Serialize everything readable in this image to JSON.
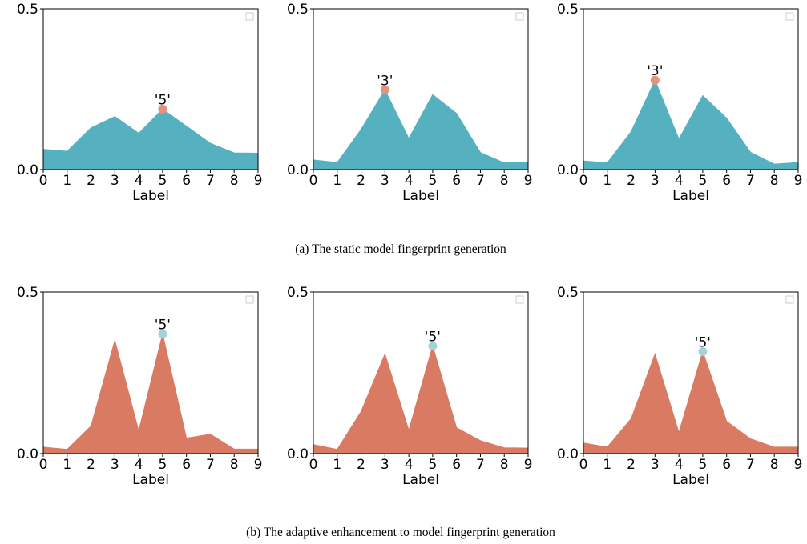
{
  "colors": {
    "static_fill": "#55b1bf",
    "adaptive_fill": "#d97a62",
    "static_marker": "#e8907e",
    "adaptive_marker": "#a4d2dc",
    "legend_box": "#cccccc"
  },
  "captions": {
    "a": "(a)  The static model fingerprint generation",
    "b": "(b)  The adaptive enhancement to model fingerprint generation"
  },
  "chart_data": [
    {
      "type": "area",
      "group": "a",
      "x": [
        0,
        1,
        2,
        3,
        4,
        5,
        6,
        7,
        8,
        9
      ],
      "values": [
        0.063,
        0.057,
        0.13,
        0.165,
        0.113,
        0.188,
        0.135,
        0.082,
        0.052,
        0.051
      ],
      "peak_label": "'5'",
      "peak_index": 5,
      "xlabel": "Label",
      "ylim": [
        0,
        0.5
      ],
      "yticks": [
        "0.0",
        "0.5"
      ],
      "xticks": [
        "0",
        "1",
        "2",
        "3",
        "4",
        "5",
        "6",
        "7",
        "8",
        "9"
      ],
      "grid": false,
      "legend": "top-right"
    },
    {
      "type": "area",
      "group": "a",
      "x": [
        0,
        1,
        2,
        3,
        4,
        5,
        6,
        7,
        8,
        9
      ],
      "values": [
        0.03,
        0.022,
        0.125,
        0.248,
        0.097,
        0.233,
        0.175,
        0.053,
        0.021,
        0.024
      ],
      "peak_label": "'3'",
      "peak_index": 3,
      "xlabel": "Label",
      "ylim": [
        0,
        0.5
      ],
      "yticks": [
        "0.0",
        "0.5"
      ],
      "xticks": [
        "0",
        "1",
        "2",
        "3",
        "4",
        "5",
        "6",
        "7",
        "8",
        "9"
      ],
      "grid": false,
      "legend": "top-right"
    },
    {
      "type": "area",
      "group": "a",
      "x": [
        0,
        1,
        2,
        3,
        4,
        5,
        6,
        7,
        8,
        9
      ],
      "values": [
        0.027,
        0.021,
        0.118,
        0.278,
        0.095,
        0.23,
        0.16,
        0.054,
        0.017,
        0.022
      ],
      "peak_label": "'3'",
      "peak_index": 3,
      "xlabel": "Label",
      "ylim": [
        0,
        0.5
      ],
      "yticks": [
        "0.0",
        "0.5"
      ],
      "xticks": [
        "0",
        "1",
        "2",
        "3",
        "4",
        "5",
        "6",
        "7",
        "8",
        "9"
      ],
      "grid": false,
      "legend": "top-right"
    },
    {
      "type": "area",
      "group": "b",
      "x": [
        0,
        1,
        2,
        3,
        4,
        5,
        6,
        7,
        8,
        9
      ],
      "values": [
        0.02,
        0.013,
        0.085,
        0.35,
        0.07,
        0.37,
        0.048,
        0.06,
        0.014,
        0.014
      ],
      "peak_label": "'5'",
      "peak_index": 5,
      "xlabel": "Label",
      "ylim": [
        0,
        0.5
      ],
      "yticks": [
        "0.0",
        "0.5"
      ],
      "xticks": [
        "0",
        "1",
        "2",
        "3",
        "4",
        "5",
        "6",
        "7",
        "8",
        "9"
      ],
      "grid": false,
      "legend": "top-right"
    },
    {
      "type": "area",
      "group": "b",
      "x": [
        0,
        1,
        2,
        3,
        4,
        5,
        6,
        7,
        8,
        9
      ],
      "values": [
        0.028,
        0.013,
        0.13,
        0.308,
        0.072,
        0.333,
        0.08,
        0.04,
        0.018,
        0.017
      ],
      "peak_label": "'5'",
      "peak_index": 5,
      "xlabel": "Label",
      "ylim": [
        0,
        0.5
      ],
      "yticks": [
        "0.0",
        "0.5"
      ],
      "xticks": [
        "0",
        "1",
        "2",
        "3",
        "4",
        "5",
        "6",
        "7",
        "8",
        "9"
      ],
      "grid": false,
      "legend": "top-right"
    },
    {
      "type": "area",
      "group": "b",
      "x": [
        0,
        1,
        2,
        3,
        4,
        5,
        6,
        7,
        8,
        9
      ],
      "values": [
        0.033,
        0.02,
        0.108,
        0.308,
        0.065,
        0.316,
        0.1,
        0.046,
        0.02,
        0.02
      ],
      "peak_label": "'5'",
      "peak_index": 5,
      "xlabel": "Label",
      "ylim": [
        0,
        0.5
      ],
      "yticks": [
        "0.0",
        "0.5"
      ],
      "xticks": [
        "0",
        "1",
        "2",
        "3",
        "4",
        "5",
        "6",
        "7",
        "8",
        "9"
      ],
      "grid": false,
      "legend": "top-right"
    }
  ]
}
